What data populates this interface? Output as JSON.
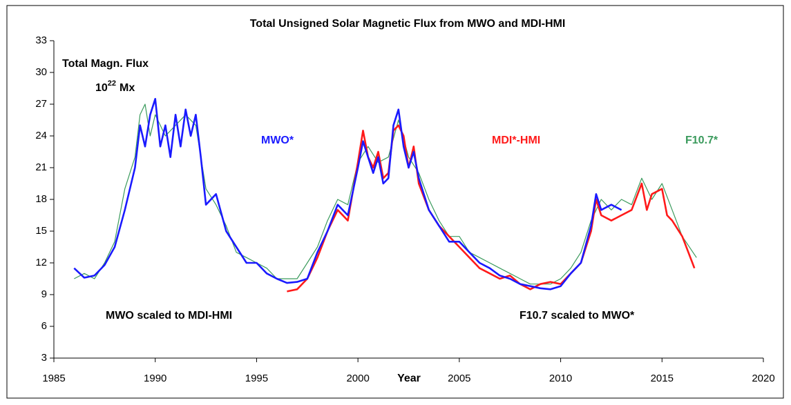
{
  "chart_data": {
    "type": "line",
    "title": "Total Unsigned Solar Magnetic Flux from MWO and MDI-HMI",
    "x_label": "Year",
    "y_label": "Total Magn. Flux",
    "y_unit": {
      "base": "10",
      "exponent": "22",
      "text": "Mx"
    },
    "annotations": [
      "MWO scaled to MDI-HMI",
      "F10.7 scaled to MWO*"
    ],
    "xlim": [
      1985,
      2020
    ],
    "xticks": [
      1985,
      1990,
      1995,
      2000,
      2005,
      2010,
      2015,
      2020
    ],
    "ylim": [
      3,
      33
    ],
    "yticks": [
      3,
      6,
      9,
      12,
      15,
      18,
      21,
      24,
      27,
      30,
      33
    ],
    "grid": false,
    "series": [
      {
        "name": "F10.7*",
        "color": "#3a9a5c",
        "x": [
          1986.0,
          1986.5,
          1987.0,
          1987.5,
          1988.0,
          1988.5,
          1989.0,
          1989.25,
          1989.5,
          1989.75,
          1990.0,
          1990.5,
          1991.0,
          1991.5,
          1992.0,
          1992.5,
          1993.0,
          1993.5,
          1994.0,
          1994.5,
          1995.0,
          1995.5,
          1996.0,
          1996.5,
          1997.0,
          1997.5,
          1998.0,
          1998.5,
          1999.0,
          1999.5,
          2000.0,
          2000.5,
          2001.0,
          2001.5,
          2002.0,
          2002.5,
          2003.0,
          2003.5,
          2004.0,
          2004.5,
          2005.0,
          2005.5,
          2006.0,
          2006.5,
          2007.0,
          2007.5,
          2008.0,
          2008.5,
          2009.0,
          2009.5,
          2010.0,
          2010.5,
          2011.0,
          2011.5,
          2012.0,
          2012.5,
          2013.0,
          2013.5,
          2014.0,
          2014.5,
          2015.0,
          2015.5,
          2016.0,
          2016.7
        ],
        "values": [
          10.5,
          11,
          10.5,
          12,
          14,
          19,
          22,
          26,
          27,
          24,
          26,
          24,
          25,
          26,
          25,
          19,
          17.5,
          15.5,
          13,
          12.5,
          12,
          11.5,
          10.5,
          10.5,
          10.5,
          12,
          13.5,
          16,
          18,
          17.5,
          21.5,
          23,
          21.5,
          22,
          25.5,
          22,
          20.5,
          18,
          16,
          14.5,
          14.5,
          13,
          12.5,
          12,
          11.5,
          11,
          10.5,
          10,
          10,
          10,
          10.5,
          11.5,
          13,
          16,
          18,
          17,
          18,
          17.5,
          20,
          18,
          19.5,
          17,
          14.5,
          12.5
        ]
      },
      {
        "name": "MDI*-HMI",
        "color": "#ff1a1a",
        "x": [
          1996.5,
          1997.0,
          1997.5,
          1998.0,
          1998.5,
          1999.0,
          1999.5,
          2000.0,
          2000.25,
          2000.5,
          2000.75,
          2001.0,
          2001.25,
          2001.5,
          2001.75,
          2002.0,
          2002.25,
          2002.5,
          2002.75,
          2003.0,
          2003.5,
          2004.0,
          2004.5,
          2005.0,
          2005.5,
          2006.0,
          2006.5,
          2007.0,
          2007.5,
          2008.0,
          2008.5,
          2009.0,
          2009.5,
          2010.0,
          2010.5,
          2011.0,
          2011.5,
          2011.75,
          2012.0,
          2012.5,
          2013.0,
          2013.5,
          2014.0,
          2014.25,
          2014.5,
          2015.0,
          2015.25,
          2015.5,
          2016.0,
          2016.5,
          2016.6
        ],
        "values": [
          9.3,
          9.5,
          10.5,
          12.5,
          15,
          17,
          16,
          21.5,
          24.5,
          22,
          21,
          22.5,
          20,
          20.5,
          24.5,
          25,
          24,
          21,
          23,
          19.5,
          17,
          15.5,
          14.5,
          13.5,
          12.5,
          11.5,
          11,
          10.5,
          10.8,
          10,
          9.5,
          10,
          10.2,
          10,
          11,
          12,
          15,
          18,
          16.5,
          16,
          16.5,
          17,
          19.5,
          17,
          18.5,
          19,
          16.5,
          16,
          14.5,
          12,
          11.5
        ]
      },
      {
        "name": "MWO*",
        "color": "#1a1aff",
        "x": [
          1986.0,
          1986.5,
          1987.0,
          1987.5,
          1988.0,
          1988.5,
          1989.0,
          1989.25,
          1989.5,
          1989.75,
          1990.0,
          1990.25,
          1990.5,
          1990.75,
          1991.0,
          1991.25,
          1991.5,
          1991.75,
          1992.0,
          1992.25,
          1992.5,
          1993.0,
          1993.5,
          1994.0,
          1994.5,
          1995.0,
          1995.5,
          1996.0,
          1996.5,
          1997.0,
          1997.5,
          1998.0,
          1998.5,
          1999.0,
          1999.5,
          2000.0,
          2000.25,
          2000.5,
          2000.75,
          2001.0,
          2001.25,
          2001.5,
          2001.75,
          2002.0,
          2002.25,
          2002.5,
          2002.75,
          2003.0,
          2003.5,
          2004.0,
          2004.5,
          2005.0,
          2005.5,
          2006.0,
          2006.5,
          2007.0,
          2007.5,
          2008.0,
          2008.5,
          2009.0,
          2009.5,
          2010.0,
          2010.5,
          2011.0,
          2011.5,
          2011.75,
          2012.0,
          2012.5,
          2013.0
        ],
        "values": [
          11.5,
          10.6,
          10.8,
          11.8,
          13.5,
          17,
          21,
          25,
          23,
          26,
          27.5,
          23,
          25,
          22,
          26,
          23,
          26.5,
          24,
          26,
          22,
          17.5,
          18.5,
          15,
          13.5,
          12,
          12,
          11,
          10.5,
          10.1,
          10.2,
          10.5,
          13,
          15,
          17.5,
          16.5,
          21,
          23.5,
          22,
          20.5,
          22,
          19.5,
          20,
          25,
          26.5,
          23,
          21,
          22.5,
          20,
          17,
          15.5,
          14,
          14,
          13,
          12,
          11.5,
          10.8,
          10.5,
          10,
          9.8,
          9.6,
          9.5,
          9.8,
          11,
          12,
          15.5,
          18.5,
          17,
          17.5,
          17
        ]
      }
    ]
  }
}
